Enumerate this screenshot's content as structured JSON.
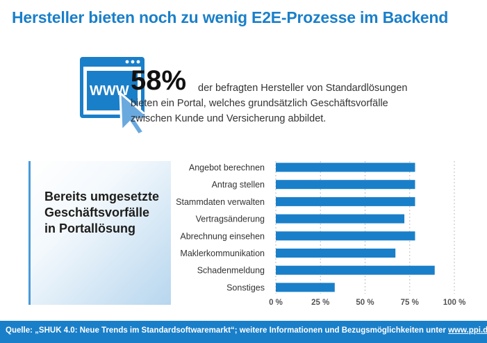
{
  "title": "Hersteller bieten noch zu wenig E2E-Prozesse im Backend",
  "stat": {
    "value": "58%",
    "text": "der befragten Hersteller von Standardlösungen bieten ein Portal, welches grundsätzlich Geschäftsvorfälle zwischen Kunde und Versicherung abbildet.",
    "icon": "www-browser-cursor-icon",
    "icon_label": "WWW"
  },
  "side_box": {
    "line1": "Bereits umgesetzte",
    "line2": "Geschäftsvorfälle",
    "line3": "in Portallösung"
  },
  "chart_data": {
    "type": "bar",
    "orientation": "horizontal",
    "categories": [
      "Angebot berechnen",
      "Antrag stellen",
      "Stammdaten verwalten",
      "Vertragsänderung",
      "Abrechnung einsehen",
      "Maklerkommunikation",
      "Schadenmeldung",
      "Sonstiges"
    ],
    "values": [
      78,
      78,
      78,
      72,
      78,
      67,
      89,
      33
    ],
    "xlim": [
      0,
      100
    ],
    "xticks": [
      "0 %",
      "25 %",
      "50 %",
      "75 %",
      "100 %"
    ],
    "grid": true,
    "bar_color": "#1a7fc9"
  },
  "footer": {
    "text": "Quelle: „SHUK 4.0: Neue Trends im Standardsoftwaremarkt“; weitere Informationen und Bezugsmöglichkeiten unter ",
    "link": "www.ppi.de/shuk"
  }
}
